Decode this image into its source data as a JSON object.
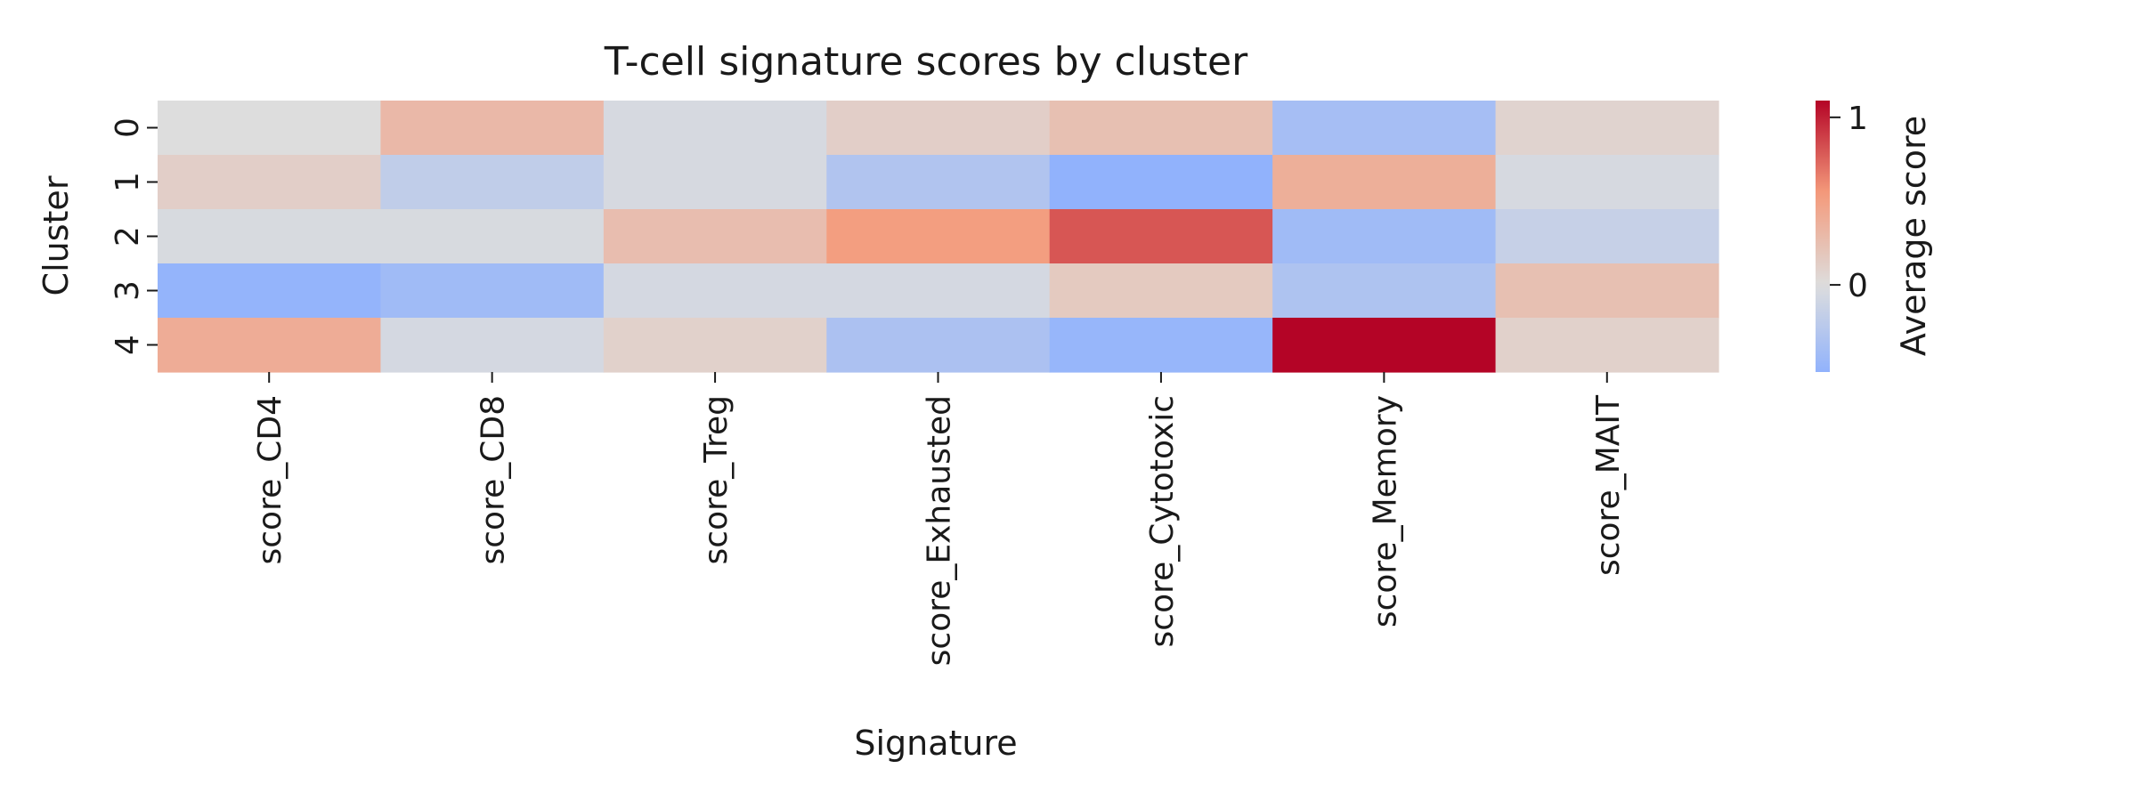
{
  "chart_data": {
    "type": "heatmap",
    "title": "T-cell signature scores by cluster",
    "xlabel": "Signature",
    "ylabel": "Cluster",
    "x_categories": [
      "score_CD4",
      "score_CD8",
      "score_Treg",
      "score_Exhausted",
      "score_Cytotoxic",
      "score_Memory",
      "score_MAIT"
    ],
    "y_categories": [
      "0",
      "1",
      "2",
      "3",
      "4"
    ],
    "values": [
      [
        0.0,
        0.3,
        -0.05,
        0.12,
        0.24,
        -0.38,
        0.08
      ],
      [
        0.12,
        -0.2,
        -0.05,
        -0.3,
        -0.52,
        0.38,
        -0.05
      ],
      [
        -0.04,
        -0.04,
        0.26,
        0.52,
        0.8,
        -0.42,
        -0.16
      ],
      [
        -0.5,
        -0.42,
        -0.06,
        -0.06,
        0.16,
        -0.32,
        0.24
      ],
      [
        0.4,
        -0.06,
        0.1,
        -0.34,
        -0.48,
        1.1,
        0.1
      ]
    ],
    "colorbar": {
      "label": "Average score",
      "vmin": -0.52,
      "vmax": 1.1,
      "ticks": [
        {
          "value": 1,
          "label": "1"
        },
        {
          "value": 0,
          "label": "0"
        }
      ]
    },
    "colormap": "coolwarm",
    "grid": false
  }
}
